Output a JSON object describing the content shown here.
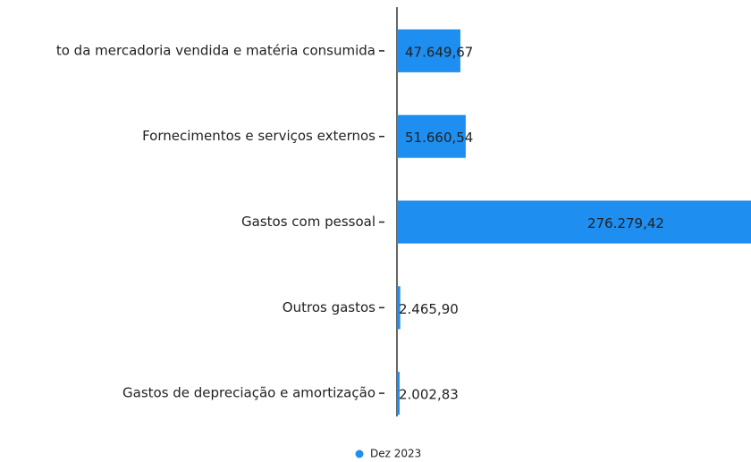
{
  "chart_data": {
    "type": "bar",
    "orientation": "horizontal",
    "categories": [
      "to da mercadoria vendida e matéria consumida",
      "Fornecimentos e serviços externos",
      "Gastos com pessoal",
      "Outros gastos",
      "Gastos de depreciação e amortização"
    ],
    "series": [
      {
        "name": "Dez 2023",
        "color": "#1e8ef0",
        "values": [
          47649.67,
          51660.54,
          276279.42,
          2465.9,
          2002.83
        ],
        "value_labels": [
          "47.649,67",
          "51.660,54",
          "276.279,42",
          "2.465,90",
          "2.002,83"
        ]
      }
    ],
    "xlim": [
      0,
      266000
    ],
    "legend": "bottom"
  }
}
